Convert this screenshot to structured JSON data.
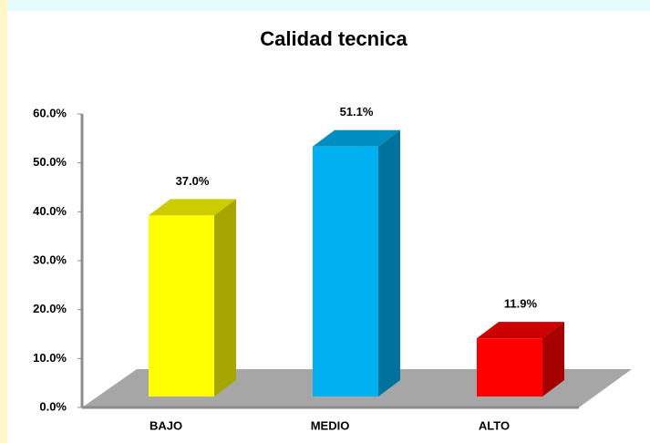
{
  "chart_data": {
    "type": "bar",
    "title": "Calidad tecnica",
    "categories": [
      "BAJO",
      "MEDIO",
      "ALTO"
    ],
    "values": [
      37.0,
      51.1,
      11.9
    ],
    "value_labels": [
      "37.0%",
      "51.1%",
      "11.9%"
    ],
    "colors": [
      "#ffff00",
      "#00b0f0",
      "#ff0000"
    ],
    "ylim": [
      0,
      60
    ],
    "yticks": [
      {
        "value": 0,
        "label": "0.0%"
      },
      {
        "value": 10,
        "label": "10.0%"
      },
      {
        "value": 20,
        "label": "20.0%"
      },
      {
        "value": 30,
        "label": "30.0%"
      },
      {
        "value": 40,
        "label": "40.0%"
      },
      {
        "value": 50,
        "label": "50.0%"
      },
      {
        "value": 60,
        "label": "60.0%"
      }
    ],
    "grid": false
  }
}
